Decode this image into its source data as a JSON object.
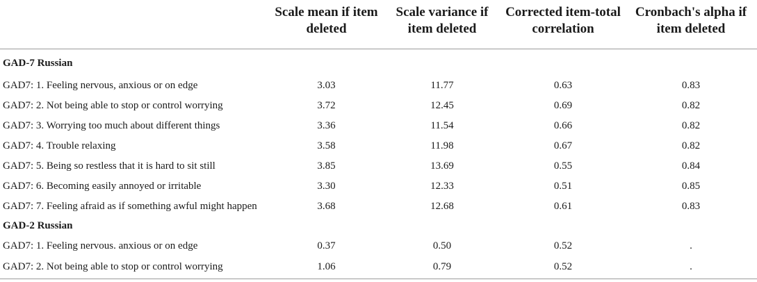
{
  "table": {
    "headers": [
      "",
      "Scale mean if item deleted",
      "Scale variance if item deleted",
      "Corrected item-total correlation",
      "Cronbach's alpha if item deleted"
    ],
    "sections": [
      {
        "title": "GAD-7 Russian",
        "rows": [
          [
            "GAD7: 1. Feeling nervous, anxious or on edge",
            "3.03",
            "11.77",
            "0.63",
            "0.83"
          ],
          [
            "GAD7: 2. Not being able to stop or control worrying",
            "3.72",
            "12.45",
            "0.69",
            "0.82"
          ],
          [
            "GAD7: 3. Worrying too much about different things",
            "3.36",
            "11.54",
            "0.66",
            "0.82"
          ],
          [
            "GAD7: 4. Trouble relaxing",
            "3.58",
            "11.98",
            "0.67",
            "0.82"
          ],
          [
            "GAD7: 5. Being so restless that it is hard to sit still",
            "3.85",
            "13.69",
            "0.55",
            "0.84"
          ],
          [
            "GAD7: 6. Becoming easily annoyed or irritable",
            "3.30",
            "12.33",
            "0.51",
            "0.85"
          ],
          [
            "GAD7: 7. Feeling afraid as if something awful might happen",
            "3.68",
            "12.68",
            "0.61",
            "0.83"
          ]
        ]
      },
      {
        "title": "GAD-2 Russian",
        "rows": [
          [
            "GAD7: 1. Feeling nervous. anxious or on edge",
            "0.37",
            "0.50",
            "0.52",
            "."
          ],
          [
            "GAD7: 2. Not being able to stop or control worrying",
            "1.06",
            "0.79",
            "0.52",
            "."
          ]
        ]
      }
    ]
  }
}
